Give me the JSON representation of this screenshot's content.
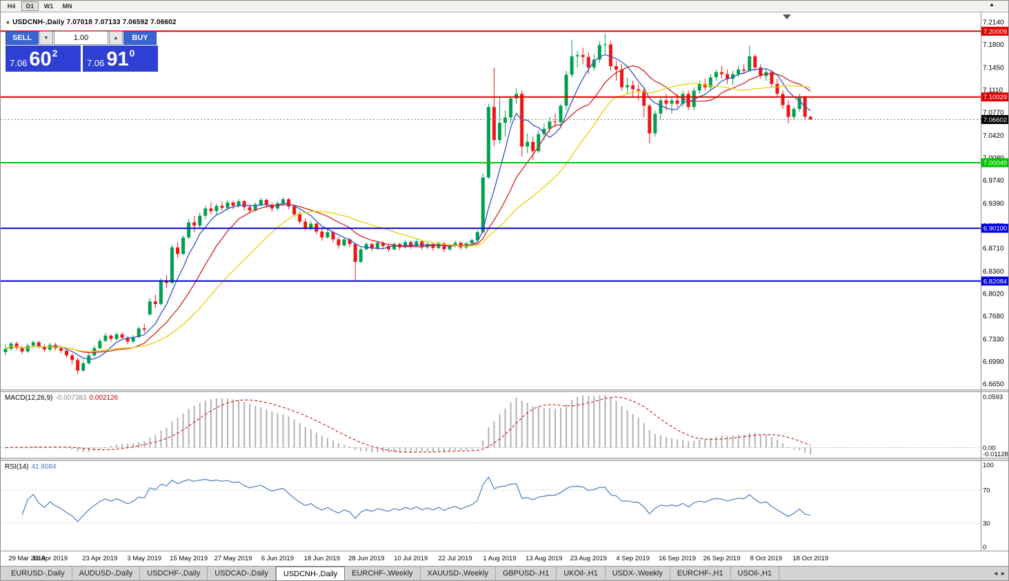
{
  "toolbar": {
    "timeframes": [
      {
        "label": "H4",
        "active": false
      },
      {
        "label": "D1",
        "active": true
      },
      {
        "label": "W1",
        "active": false
      },
      {
        "label": "MN",
        "active": false
      }
    ],
    "collapse_icon": "▲"
  },
  "chart_header": {
    "symbol_period": "USDCNH-,Daily",
    "ohlc": "7.07018 7.07133 7.06592 7.06602"
  },
  "trade_widget": {
    "sell_label": "SELL",
    "buy_label": "BUY",
    "volume": "1.00",
    "sell_price": {
      "prefix": "7.06",
      "big": "60",
      "sup": "2"
    },
    "buy_price": {
      "prefix": "7.06",
      "big": "91",
      "sup": "0"
    }
  },
  "macd_panel": {
    "label": "MACD(12,26,9)",
    "value_main": "-0.007383",
    "value_signal": "0.002126",
    "axis_labels": [
      "0.0593",
      "0.00",
      "-0.011289"
    ],
    "params": {
      "fast": 12,
      "slow": 26,
      "signal": 9
    },
    "histogram_color": "#b2b2b2",
    "signal_color": "#c00000"
  },
  "rsi_panel": {
    "label": "RSI(14)",
    "value": "41.8084",
    "period": 14,
    "axis_labels": [
      "100",
      "70",
      "30",
      "0"
    ],
    "levels": [
      70,
      30
    ],
    "line_color": "#4a7ebb"
  },
  "tabs": {
    "items": [
      {
        "label": "EURUSD-,Daily",
        "active": false
      },
      {
        "label": "AUDUSD-,Daily",
        "active": false
      },
      {
        "label": "USDCHF-,Daily",
        "active": false
      },
      {
        "label": "USDCAD-,Daily",
        "active": false
      },
      {
        "label": "USDCNH-,Daily",
        "active": true
      },
      {
        "label": "EURCHF-,Weekly",
        "active": false
      },
      {
        "label": "XAUUSD-,Weekly",
        "active": false
      },
      {
        "label": "GBPUSD-,H1",
        "active": false
      },
      {
        "label": "UKOil-,H1",
        "active": false
      },
      {
        "label": "USDX-,Weekly",
        "active": false
      },
      {
        "label": "EURCHF-,H1",
        "active": false
      },
      {
        "label": "USOil-,H1",
        "active": false
      }
    ],
    "scroll_left_icon": "◄",
    "scroll_right_icon": "►"
  },
  "chart_data": {
    "type": "candlestick",
    "symbol": "USDCNH",
    "timeframe": "Daily",
    "up_color": "#00a14e",
    "down_color": "#ee1515",
    "y_axis_ticks": [
      "7.2140",
      "7.1800",
      "7.1450",
      "7.1110",
      "7.0770",
      "7.0420",
      "7.0080",
      "6.9740",
      "6.9390",
      "6.9050",
      "6.8710",
      "6.8360",
      "6.8020",
      "6.7680",
      "6.7330",
      "6.6990",
      "6.6650"
    ],
    "h_lines": [
      {
        "price": 7.20009,
        "label": "7.20009",
        "color": "#dd0000"
      },
      {
        "price": 7.10029,
        "label": "7.10029",
        "color": "#dd0000"
      },
      {
        "price": 7.00049,
        "label": "7.00049",
        "color": "#00c400"
      },
      {
        "price": 6.901,
        "label": "6.90100",
        "color": "#0000dd"
      },
      {
        "price": 6.82084,
        "label": "6.82084",
        "color": "#0000dd"
      }
    ],
    "current_price": {
      "value": 7.06602,
      "label": "7.06602",
      "tag_color": "#000000"
    },
    "moving_averages": [
      {
        "period": 6,
        "color": "#3450c8"
      },
      {
        "period": 13,
        "color": "#cc2222"
      },
      {
        "period": 24,
        "color": "#e8d200"
      }
    ],
    "date_labels": [
      {
        "text": "29 Mar 2019",
        "index": 0
      },
      {
        "text": "10 Apr 2019",
        "index": 8
      },
      {
        "text": "23 Apr 2019",
        "index": 17
      },
      {
        "text": "3 May 2019",
        "index": 25
      },
      {
        "text": "15 May 2019",
        "index": 33
      },
      {
        "text": "27 May 2019",
        "index": 41
      },
      {
        "text": "6 Jun 2019",
        "index": 49
      },
      {
        "text": "18 Jun 2019",
        "index": 57
      },
      {
        "text": "28 Jun 2019",
        "index": 65
      },
      {
        "text": "10 Jul 2019",
        "index": 73
      },
      {
        "text": "22 Jul 2019",
        "index": 81
      },
      {
        "text": "1 Aug 2019",
        "index": 89
      },
      {
        "text": "13 Aug 2019",
        "index": 97
      },
      {
        "text": "23 Aug 2019",
        "index": 105
      },
      {
        "text": "4 Sep 2019",
        "index": 113
      },
      {
        "text": "16 Sep 2019",
        "index": 121
      },
      {
        "text": "26 Sep 2019",
        "index": 129
      },
      {
        "text": "8 Oct 2019",
        "index": 137
      },
      {
        "text": "18 Oct 2019",
        "index": 145
      }
    ],
    "candles": [
      [
        6.713,
        6.724,
        6.708,
        6.718
      ],
      [
        6.718,
        6.729,
        6.715,
        6.726
      ],
      [
        6.726,
        6.729,
        6.716,
        6.7195
      ],
      [
        6.7195,
        6.723,
        6.71,
        6.714
      ],
      [
        6.714,
        6.726,
        6.712,
        6.723
      ],
      [
        6.723,
        6.731,
        6.72,
        6.728
      ],
      [
        6.728,
        6.73,
        6.718,
        6.7215
      ],
      [
        6.7215,
        6.725,
        6.713,
        6.717
      ],
      [
        6.717,
        6.727,
        6.714,
        6.724
      ],
      [
        6.724,
        6.727,
        6.716,
        6.719
      ],
      [
        6.719,
        6.722,
        6.711,
        6.715
      ],
      [
        6.715,
        6.718,
        6.704,
        6.708
      ],
      [
        6.708,
        6.711,
        6.694,
        6.701
      ],
      [
        6.701,
        6.704,
        6.679,
        6.685
      ],
      [
        6.685,
        6.7,
        6.683,
        6.696
      ],
      [
        6.696,
        6.712,
        6.694,
        6.708
      ],
      [
        6.708,
        6.723,
        6.706,
        6.719
      ],
      [
        6.719,
        6.734,
        6.717,
        6.73
      ],
      [
        6.73,
        6.742,
        6.728,
        6.738
      ],
      [
        6.738,
        6.74,
        6.729,
        6.733
      ],
      [
        6.733,
        6.744,
        6.731,
        6.74
      ],
      [
        6.74,
        6.743,
        6.732,
        6.735
      ],
      [
        6.735,
        6.738,
        6.725,
        6.729
      ],
      [
        6.729,
        6.739,
        6.726,
        6.736
      ],
      [
        6.736,
        6.752,
        6.734,
        6.749
      ],
      [
        6.749,
        6.756,
        6.742,
        6.747
      ],
      [
        6.77,
        6.795,
        6.768,
        6.79
      ],
      [
        6.79,
        6.8,
        6.78,
        6.786
      ],
      [
        6.786,
        6.825,
        6.784,
        6.822
      ],
      [
        6.822,
        6.83,
        6.81,
        6.818
      ],
      [
        6.818,
        6.876,
        6.816,
        6.872
      ],
      [
        6.872,
        6.88,
        6.856,
        6.862
      ],
      [
        6.862,
        6.89,
        6.86,
        6.887
      ],
      [
        6.887,
        6.915,
        6.885,
        6.91
      ],
      [
        6.91,
        6.92,
        6.895,
        6.905
      ],
      [
        6.905,
        6.925,
        6.9,
        6.92
      ],
      [
        6.92,
        6.935,
        6.915,
        6.931
      ],
      [
        6.931,
        6.94,
        6.922,
        6.927
      ],
      [
        6.927,
        6.938,
        6.92,
        6.935
      ],
      [
        6.935,
        6.942,
        6.928,
        6.932
      ],
      [
        6.932,
        6.944,
        6.928,
        6.94
      ],
      [
        6.94,
        6.943,
        6.93,
        6.935
      ],
      [
        6.935,
        6.945,
        6.932,
        6.942
      ],
      [
        6.942,
        6.944,
        6.928,
        6.933
      ],
      [
        6.933,
        6.938,
        6.923,
        6.928
      ],
      [
        6.928,
        6.94,
        6.926,
        6.937
      ],
      [
        6.937,
        6.947,
        6.934,
        6.944
      ],
      [
        6.944,
        6.946,
        6.932,
        6.937
      ],
      [
        6.937,
        6.94,
        6.926,
        6.931
      ],
      [
        6.931,
        6.942,
        6.928,
        6.939
      ],
      [
        6.939,
        6.948,
        6.935,
        6.945
      ],
      [
        6.945,
        6.947,
        6.93,
        6.934
      ],
      [
        6.934,
        6.937,
        6.918,
        6.922
      ],
      [
        6.922,
        6.927,
        6.907,
        6.911
      ],
      [
        6.911,
        6.916,
        6.897,
        6.901
      ],
      [
        6.901,
        6.912,
        6.898,
        6.908
      ],
      [
        6.908,
        6.91,
        6.892,
        6.896
      ],
      [
        6.896,
        6.9,
        6.882,
        6.887
      ],
      [
        6.887,
        6.899,
        6.885,
        6.895
      ],
      [
        6.895,
        6.897,
        6.879,
        6.884
      ],
      [
        6.884,
        6.888,
        6.87,
        6.875
      ],
      [
        6.875,
        6.887,
        6.873,
        6.884
      ],
      [
        6.884,
        6.886,
        6.872,
        6.877
      ],
      [
        6.877,
        6.879,
        6.822,
        6.85
      ],
      [
        6.85,
        6.872,
        6.848,
        6.869
      ],
      [
        6.869,
        6.88,
        6.867,
        6.877
      ],
      [
        6.877,
        6.879,
        6.866,
        6.87
      ],
      [
        6.87,
        6.882,
        6.868,
        6.879
      ],
      [
        6.879,
        6.881,
        6.87,
        6.874
      ],
      [
        6.874,
        6.878,
        6.865,
        6.869
      ],
      [
        6.869,
        6.88,
        6.867,
        6.877
      ],
      [
        6.877,
        6.879,
        6.868,
        6.872
      ],
      [
        6.872,
        6.883,
        6.87,
        6.88
      ],
      [
        6.88,
        6.882,
        6.87,
        6.874
      ],
      [
        6.874,
        6.884,
        6.872,
        6.881
      ],
      [
        6.881,
        6.883,
        6.868,
        6.872
      ],
      [
        6.872,
        6.88,
        6.869,
        6.877
      ],
      [
        6.877,
        6.879,
        6.867,
        6.871
      ],
      [
        6.871,
        6.881,
        6.869,
        6.878
      ],
      [
        6.878,
        6.88,
        6.865,
        6.869
      ],
      [
        6.869,
        6.878,
        6.866,
        6.875
      ],
      [
        6.875,
        6.882,
        6.872,
        6.879
      ],
      [
        6.879,
        6.881,
        6.868,
        6.872
      ],
      [
        6.872,
        6.88,
        6.869,
        6.878
      ],
      [
        6.878,
        6.885,
        6.875,
        6.883
      ],
      [
        6.883,
        6.898,
        6.88,
        6.895
      ],
      [
        6.895,
        6.985,
        6.893,
        6.978
      ],
      [
        6.978,
        7.09,
        6.976,
        7.085
      ],
      [
        7.085,
        7.145,
        7.025,
        7.035
      ],
      [
        7.035,
        7.1,
        7.03,
        7.061
      ],
      [
        7.061,
        7.08,
        7.04,
        7.069
      ],
      [
        7.069,
        7.1,
        7.06,
        7.098
      ],
      [
        7.098,
        7.113,
        7.09,
        7.105
      ],
      [
        7.105,
        7.11,
        7.01,
        7.025
      ],
      [
        7.025,
        7.045,
        7.015,
        7.032
      ],
      [
        7.032,
        7.04,
        7.005,
        7.018
      ],
      [
        7.018,
        7.05,
        7.015,
        7.044
      ],
      [
        7.044,
        7.06,
        7.035,
        7.052
      ],
      [
        7.052,
        7.07,
        7.045,
        7.063
      ],
      [
        7.063,
        7.075,
        7.055,
        7.062
      ],
      [
        7.062,
        7.09,
        7.055,
        7.087
      ],
      [
        7.087,
        7.14,
        7.08,
        7.134
      ],
      [
        7.134,
        7.187,
        7.13,
        7.162
      ],
      [
        7.162,
        7.17,
        7.145,
        7.164
      ],
      [
        7.164,
        7.175,
        7.15,
        7.161
      ],
      [
        7.161,
        7.168,
        7.135,
        7.145
      ],
      [
        7.145,
        7.165,
        7.14,
        7.157
      ],
      [
        7.157,
        7.185,
        7.152,
        7.179
      ],
      [
        7.179,
        7.1965,
        7.165,
        7.18
      ],
      [
        7.18,
        7.185,
        7.14,
        7.147
      ],
      [
        7.147,
        7.155,
        7.125,
        7.142
      ],
      [
        7.142,
        7.15,
        7.11,
        7.115
      ],
      [
        7.115,
        7.13,
        7.105,
        7.118
      ],
      [
        7.118,
        7.125,
        7.1,
        7.112
      ],
      [
        7.112,
        7.12,
        7.095,
        7.11
      ],
      [
        7.11,
        7.115,
        7.069,
        7.087
      ],
      [
        7.087,
        7.09,
        7.03,
        7.045
      ],
      [
        7.045,
        7.08,
        7.04,
        7.075
      ],
      [
        7.075,
        7.1,
        7.065,
        7.095
      ],
      [
        7.095,
        7.105,
        7.08,
        7.09
      ],
      [
        7.09,
        7.1,
        7.075,
        7.095
      ],
      [
        7.095,
        7.105,
        7.085,
        7.09
      ],
      [
        7.09,
        7.11,
        7.085,
        7.105
      ],
      [
        7.105,
        7.11,
        7.08,
        7.085
      ],
      [
        7.085,
        7.115,
        7.08,
        7.11
      ],
      [
        7.11,
        7.125,
        7.105,
        7.12
      ],
      [
        7.12,
        7.128,
        7.11,
        7.115
      ],
      [
        7.115,
        7.135,
        7.11,
        7.13
      ],
      [
        7.13,
        7.142,
        7.125,
        7.138
      ],
      [
        7.138,
        7.148,
        7.128,
        7.135
      ],
      [
        7.135,
        7.142,
        7.12,
        7.128
      ],
      [
        7.128,
        7.14,
        7.118,
        7.135
      ],
      [
        7.135,
        7.148,
        7.13,
        7.142
      ],
      [
        7.142,
        7.15,
        7.135,
        7.14
      ],
      [
        7.14,
        7.178,
        7.138,
        7.162
      ],
      [
        7.162,
        7.165,
        7.14,
        7.145
      ],
      [
        7.145,
        7.15,
        7.128,
        7.132
      ],
      [
        7.132,
        7.142,
        7.125,
        7.138
      ],
      [
        7.138,
        7.14,
        7.115,
        7.12
      ],
      [
        7.12,
        7.128,
        7.1,
        7.105
      ],
      [
        7.105,
        7.11,
        7.082,
        7.088
      ],
      [
        7.088,
        7.095,
        7.06,
        7.07
      ],
      [
        7.07,
        7.085,
        7.065,
        7.082
      ],
      [
        7.082,
        7.105,
        7.078,
        7.1
      ],
      [
        7.1,
        7.102,
        7.065,
        7.0702
      ],
      [
        7.0702,
        7.0713,
        7.0659,
        7.066
      ]
    ]
  }
}
